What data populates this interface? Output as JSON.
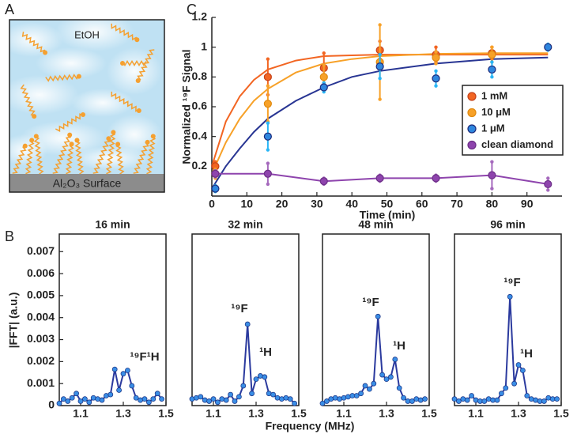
{
  "panel_labels": [
    "A",
    "B",
    "C"
  ],
  "diagram": {
    "solvent_label": "EtOH",
    "surface_label": "Al₂O₃ Surface"
  },
  "chart_data": [
    {
      "type": "scatter",
      "xlabel": "Time (min)",
      "ylabel": "Normalized ¹⁹F Signal",
      "xlim": [
        0,
        100
      ],
      "ylim": [
        0,
        1.2
      ],
      "xticks": [
        0,
        10,
        20,
        30,
        40,
        50,
        60,
        70,
        80,
        90
      ],
      "yticks": [
        0.2,
        0.4,
        0.6,
        0.8,
        1,
        1.2
      ],
      "frame": false,
      "series": [
        {
          "name": "1 mM",
          "color": "#f26522",
          "edge_color": "#c4421a",
          "error_color": "#f26522",
          "line": false,
          "x": [
            1,
            16,
            32,
            48,
            64,
            80
          ],
          "values": [
            0.2,
            0.8,
            0.86,
            0.98,
            0.95,
            0.96
          ],
          "errors": [
            0.03,
            0.12,
            0.1,
            0.06,
            0.05,
            0.04
          ],
          "fit": {
            "color": "#f26522",
            "x": [
              0,
              4,
              8,
              12,
              16,
              24,
              32,
              40,
              48,
              64,
              80,
              96
            ],
            "values": [
              0.2,
              0.5,
              0.67,
              0.78,
              0.85,
              0.91,
              0.94,
              0.945,
              0.95,
              0.95,
              0.95,
              0.95
            ]
          }
        },
        {
          "name": "10 μM",
          "color": "#f7a128",
          "edge_color": "#e08a10",
          "error_color": "#f7a128",
          "line": false,
          "x": [
            1,
            16,
            32,
            48,
            64,
            80
          ],
          "values": [
            0.15,
            0.62,
            0.8,
            0.9,
            0.93,
            0.95
          ],
          "errors": [
            0.03,
            0.12,
            0.08,
            0.25,
            0.04,
            0.05
          ],
          "fit": {
            "color": "#f7a128",
            "x": [
              0,
              4,
              8,
              12,
              16,
              24,
              32,
              40,
              48,
              64,
              80,
              96
            ],
            "values": [
              0.15,
              0.36,
              0.52,
              0.64,
              0.72,
              0.83,
              0.89,
              0.92,
              0.94,
              0.955,
              0.96,
              0.96
            ]
          }
        },
        {
          "name": "1 μM",
          "color": "#2e86de",
          "edge_color": "#1c2a7a",
          "error_color": "#29b6f6",
          "line": false,
          "x": [
            1,
            16,
            32,
            48,
            64,
            80,
            96
          ],
          "values": [
            0.05,
            0.4,
            0.73,
            0.87,
            0.79,
            0.85,
            1.0
          ],
          "errors": [
            0.02,
            0.09,
            0.03,
            0.08,
            0.05,
            0.05,
            0.02
          ],
          "fit": {
            "color": "#283593",
            "x": [
              0,
              4,
              8,
              12,
              16,
              24,
              32,
              40,
              48,
              64,
              80,
              96
            ],
            "values": [
              0.05,
              0.2,
              0.32,
              0.43,
              0.52,
              0.64,
              0.73,
              0.8,
              0.84,
              0.89,
              0.92,
              0.93
            ]
          }
        },
        {
          "name": "clean diamond",
          "color": "#8e44ad",
          "edge_color": "#6c2f87",
          "error_color": "#a569bd",
          "line": true,
          "x": [
            1,
            16,
            32,
            48,
            64,
            80,
            96
          ],
          "values": [
            0.15,
            0.15,
            0.1,
            0.12,
            0.12,
            0.14,
            0.08
          ],
          "errors": [
            0.02,
            0.07,
            0.02,
            0.02,
            0.02,
            0.09,
            0.04
          ]
        }
      ]
    },
    {
      "type": "line",
      "title": "16 min",
      "xlabel": "Frequency (MHz)",
      "ylabel": "|FFT| (a.u.)",
      "xlim": [
        1.0,
        1.5
      ],
      "ylim": [
        0,
        0.0078
      ],
      "xticks": [
        1.1,
        1.3,
        1.5
      ],
      "yticks": [
        0,
        0.001,
        0.002,
        0.003,
        0.004,
        0.005,
        0.006,
        0.007
      ],
      "frame": true,
      "color": "#2b3a9e",
      "marker_color": "#3a8ee6",
      "x": [
        1.0,
        1.02,
        1.04,
        1.06,
        1.08,
        1.1,
        1.12,
        1.14,
        1.16,
        1.18,
        1.2,
        1.22,
        1.24,
        1.26,
        1.28,
        1.3,
        1.32,
        1.34,
        1.36,
        1.38,
        1.4,
        1.42,
        1.44,
        1.46,
        1.48
      ],
      "values": [
        0.0001,
        0.0003,
        0.0002,
        0.00035,
        0.00055,
        0.0002,
        0.0003,
        0.00015,
        0.00035,
        0.0003,
        0.00025,
        0.00045,
        0.0005,
        0.00165,
        0.0007,
        0.00145,
        0.0016,
        0.0009,
        0.00035,
        0.00025,
        0.0003,
        0.00015,
        0.0003,
        0.00055,
        0.0003
      ],
      "annotations": [
        "¹⁹F¹H"
      ]
    },
    {
      "type": "line",
      "title": "32 min",
      "xlim": [
        1.0,
        1.5
      ],
      "ylim": [
        0,
        0.0078
      ],
      "xticks": [
        1.1,
        1.3,
        1.5
      ],
      "frame": true,
      "color": "#2b3a9e",
      "marker_color": "#3a8ee6",
      "x": [
        1.0,
        1.02,
        1.04,
        1.06,
        1.08,
        1.1,
        1.12,
        1.14,
        1.16,
        1.18,
        1.2,
        1.22,
        1.24,
        1.26,
        1.28,
        1.3,
        1.32,
        1.34,
        1.36,
        1.38,
        1.4,
        1.42,
        1.44,
        1.46,
        1.48
      ],
      "values": [
        0.0003,
        0.00035,
        0.0004,
        0.00025,
        0.0002,
        0.0003,
        0.00015,
        0.0003,
        0.00025,
        0.0005,
        0.0002,
        0.0004,
        0.0009,
        0.0037,
        0.00055,
        0.0012,
        0.00135,
        0.0013,
        0.00055,
        0.0005,
        0.00035,
        0.0003,
        0.00035,
        0.0003,
        0.0001
      ],
      "annotations": [
        "¹⁹F",
        "¹H"
      ]
    },
    {
      "type": "line",
      "title": "48 min",
      "xlim": [
        1.0,
        1.5
      ],
      "ylim": [
        0,
        0.0078
      ],
      "xticks": [
        1.1,
        1.3,
        1.5
      ],
      "frame": true,
      "color": "#2b3a9e",
      "marker_color": "#3a8ee6",
      "x": [
        1.0,
        1.02,
        1.04,
        1.06,
        1.08,
        1.1,
        1.12,
        1.14,
        1.16,
        1.18,
        1.2,
        1.22,
        1.24,
        1.26,
        1.28,
        1.3,
        1.32,
        1.34,
        1.36,
        1.38,
        1.4,
        1.42,
        1.44,
        1.46,
        1.48
      ],
      "values": [
        0.0001,
        0.0002,
        0.0003,
        0.00035,
        0.0003,
        0.00035,
        0.0004,
        0.00045,
        0.00045,
        0.00055,
        0.0009,
        0.00075,
        0.001,
        0.00405,
        0.0014,
        0.0012,
        0.0013,
        0.0021,
        0.0008,
        0.00035,
        0.0002,
        0.0002,
        0.0003,
        0.00025,
        0.0003
      ],
      "annotations": [
        "¹⁹F",
        "¹H"
      ]
    },
    {
      "type": "line",
      "title": "96 min",
      "xlim": [
        1.0,
        1.5
      ],
      "ylim": [
        0,
        0.0078
      ],
      "xticks": [
        1.1,
        1.3,
        1.5
      ],
      "frame": true,
      "color": "#2b3a9e",
      "marker_color": "#3a8ee6",
      "x": [
        1.0,
        1.02,
        1.04,
        1.06,
        1.08,
        1.1,
        1.12,
        1.14,
        1.16,
        1.18,
        1.2,
        1.22,
        1.24,
        1.26,
        1.28,
        1.3,
        1.32,
        1.34,
        1.36,
        1.38,
        1.4,
        1.42,
        1.44,
        1.46,
        1.48
      ],
      "values": [
        0.0003,
        0.0002,
        0.0003,
        0.00025,
        0.00045,
        0.00025,
        0.0002,
        0.0002,
        0.0003,
        0.00025,
        0.00025,
        0.00055,
        0.0008,
        0.00495,
        0.001,
        0.00185,
        0.0016,
        0.00045,
        0.0003,
        0.00025,
        0.0002,
        0.0002,
        0.00035,
        0.0003,
        0.0003
      ],
      "annotations": [
        "¹⁹F",
        "¹H"
      ]
    }
  ]
}
